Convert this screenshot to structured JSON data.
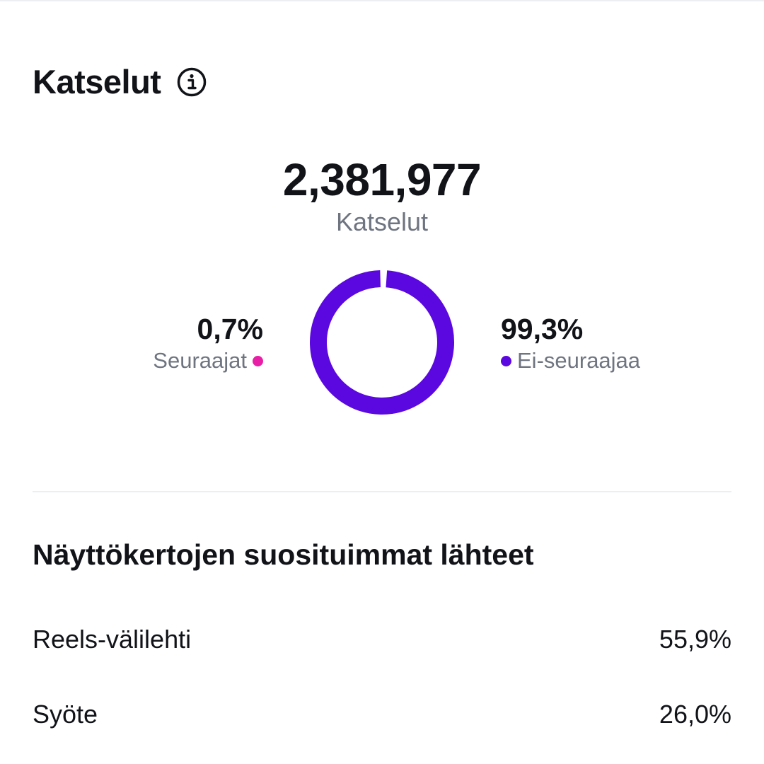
{
  "views": {
    "title": "Katselut",
    "info_icon": "info-circle-icon",
    "total": "2,381,977",
    "total_label": "Katselut",
    "breakdown": [
      {
        "percent_label": "0,7%",
        "label": "Seuraajat",
        "value": 0.7,
        "color": "#e91ea7"
      },
      {
        "percent_label": "99,3%",
        "label": "Ei-seuraajaa",
        "value": 99.3,
        "color": "#5b08e0"
      }
    ]
  },
  "sources": {
    "title": "Näyttökertojen suosituimmat lähteet",
    "rows": [
      {
        "label": "Reels-välilehti",
        "value": "55,9%"
      },
      {
        "label": "Syöte",
        "value": "26,0%"
      }
    ]
  }
}
